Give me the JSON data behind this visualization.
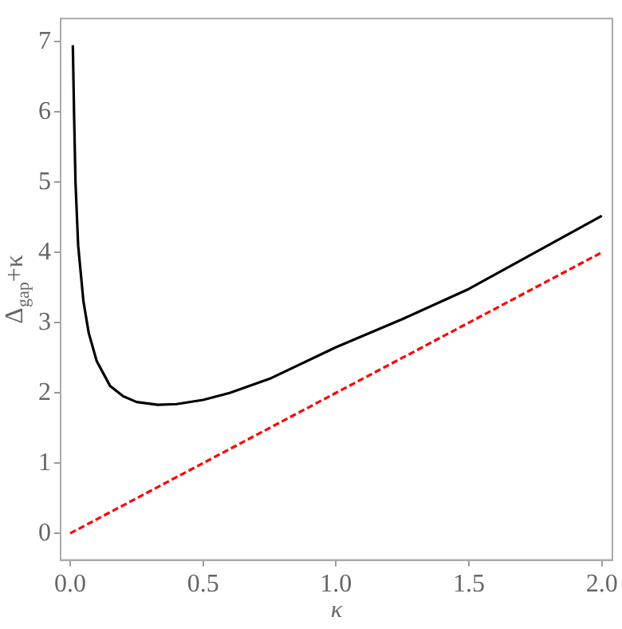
{
  "chart_data": {
    "type": "line",
    "xlabel": "κ",
    "ylabel": "Δ$_{gap}$+κ",
    "xlim": [
      -0.036,
      2.04
    ],
    "ylim": [
      -0.38,
      7.33
    ],
    "xticks": [
      {
        "value": 0,
        "label": "0.0"
      },
      0.5,
      {
        "value": 1,
        "label": "1.0"
      },
      1.5,
      {
        "value": 2,
        "label": "2.0"
      }
    ],
    "yticks": [
      0,
      1,
      2,
      3,
      4,
      5,
      6,
      7
    ],
    "grid": false,
    "legend": false,
    "marker": "none",
    "series": [
      {
        "color": "#000000",
        "line_style": "solid",
        "x": [
          0.01,
          0.015,
          0.02,
          0.03,
          0.05,
          0.07,
          0.1,
          0.15,
          0.2,
          0.25,
          0.33,
          0.4,
          0.5,
          0.6,
          0.75,
          1.0,
          1.25,
          1.5,
          1.75,
          2.0
        ],
        "values": [
          6.95,
          5.9,
          5.0,
          4.1,
          3.3,
          2.85,
          2.45,
          2.1,
          1.95,
          1.87,
          1.83,
          1.84,
          1.9,
          2.0,
          2.2,
          2.65,
          3.05,
          3.48,
          4.0,
          4.52
        ]
      },
      {
        "color": "#ff0000",
        "line_style": "dashed",
        "x": [
          0,
          2
        ],
        "values": [
          0,
          4
        ]
      }
    ]
  }
}
